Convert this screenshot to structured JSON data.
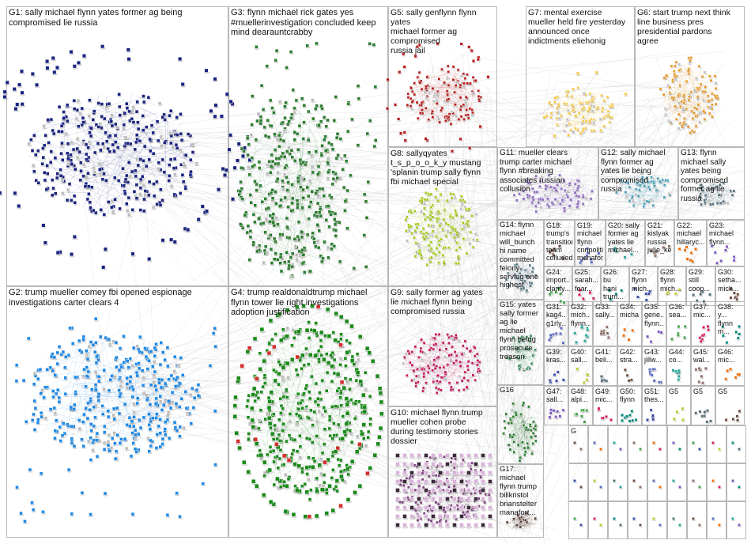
{
  "graph": {
    "background": "#ffffff",
    "border_color": "#b8b8b8",
    "edge_color": "#c8c8c8",
    "groups": [
      {
        "id": "G1",
        "label": "G1: sally michael flynn yates former ag being\ncompromised lie russia",
        "color": "#1a237e"
      },
      {
        "id": "G2",
        "label": "G2: trump mueller comey fbi opened espionage\ninvestigations carter clears 4",
        "color": "#1e88e5"
      },
      {
        "id": "G3",
        "label": "G3: flynn michael rick gates yes\n#muellerinvestigation concluded keep\nmind dearauntcrabby",
        "color": "#2e7d32"
      },
      {
        "id": "G4",
        "label": "G4: trump realdonaldtrump michael\nflynn tower lie right investigations\nadoption justification",
        "color": "#1b8a1b"
      },
      {
        "id": "G5",
        "label": "G5: sally genflynn flynn yates\nmichael former ag compromised\nrussia jail",
        "color": "#b71c1c"
      },
      {
        "id": "G6",
        "label": "G6: start trump next think\nline business pres\npresidential pardons\nagree",
        "color": "#e69a2b"
      },
      {
        "id": "G7",
        "label": "G7: mental exercise\nmueller held fire yesterday\nannounced once\nindictments eliehonig",
        "color": "#f2c94c"
      },
      {
        "id": "G8",
        "label": "G8: sallyqyates\nt_s_p_o_o_k_y mustang\n'splanin trump sally flynn\nfbi michael special",
        "color": "#a5c91a"
      },
      {
        "id": "G9",
        "label": "G9: sally former ag yates\nlie michael flynn being\ncompromised russia",
        "color": "#c2185b"
      },
      {
        "id": "G10",
        "label": "G10: michael flynn trump\nmueller cohen probe\nduring testimony stories\ndossier",
        "color": "#7b3f7b"
      },
      {
        "id": "G11",
        "label": "G11: mueller clears\ntrump carter michael\nflynn #breaking\nassociates russian\ncollusion",
        "color": "#8e6bbf"
      },
      {
        "id": "G12",
        "label": "G12: sally michael\nflynn former ag\nyates lie being\ncompromised\nrussia",
        "color": "#4aa0b8"
      },
      {
        "id": "G13",
        "label": "G13: flynn\nmichael sally\nyates being\ncompromised\nformer ag lie\nrussia",
        "color": "#546e7a"
      },
      {
        "id": "G14",
        "label": "G14: flynn\nmichael\nwill_bunch\nhi name\ncommitted\nfelony\nserving one\nhighest",
        "color": "#607d8b"
      },
      {
        "id": "G15",
        "label": "G15: yates\nsally former\nag lie\nmichael\nflynn being\nprosecute\ntreason",
        "color": "#3f8f5f"
      },
      {
        "id": "G16",
        "label": "G16",
        "color": "#2e7d32"
      },
      {
        "id": "G17",
        "label": "G17:\nmichael\nflynn trump\nbillkristol\nbrianstelter\nmanafort...",
        "color": "#5d4037"
      }
    ],
    "small_labels": [
      "G18: trump's\ntransition\nteam\ncolluded...",
      "G19: michael\nflynn\ncnnpolitics\nmanafort...",
      "G20: sally\nformer ag\nyates lie\nmichael...",
      "G21:\nkislyak\nrussia\njulie_kell...",
      "G22:\nmichael\nhillaryc...",
      "G23:\nmichael\nflynn...",
      "G24:\nimport...\nclarify...",
      "G25:\nsarah...\nfear...",
      "G26:\nbu\nhani\ntrum...",
      "G27:\nflynn\nmich...",
      "G28:\nflynn\nmich...",
      "G29:\nstill\ncoop...",
      "G30:\nsetha...\nmich...",
      "G31:\nkag4...\ng1rly...",
      "G32:\nmich...\nflynn...",
      "G33:\nsally...",
      "G34:\nmicha...",
      "G35:\ngene...\nflynn...",
      "G36:\nsea...",
      "G37:\nmic...",
      "G38:\ny...\nflynn\nm...",
      "G39:\nkras...",
      "G40:\nsall...",
      "G41:\nbeli...",
      "G42:\nstra...",
      "G43:\njillw...",
      "G44:\nco...",
      "G45:\nwal...",
      "G46:\nmic...",
      "G47:\nsall...",
      "G48:\nalpi...",
      "G49:\nmic...",
      "G50:\nflynn",
      "G51:\nthes...",
      "G5",
      "G5",
      "G5",
      "G"
    ]
  }
}
